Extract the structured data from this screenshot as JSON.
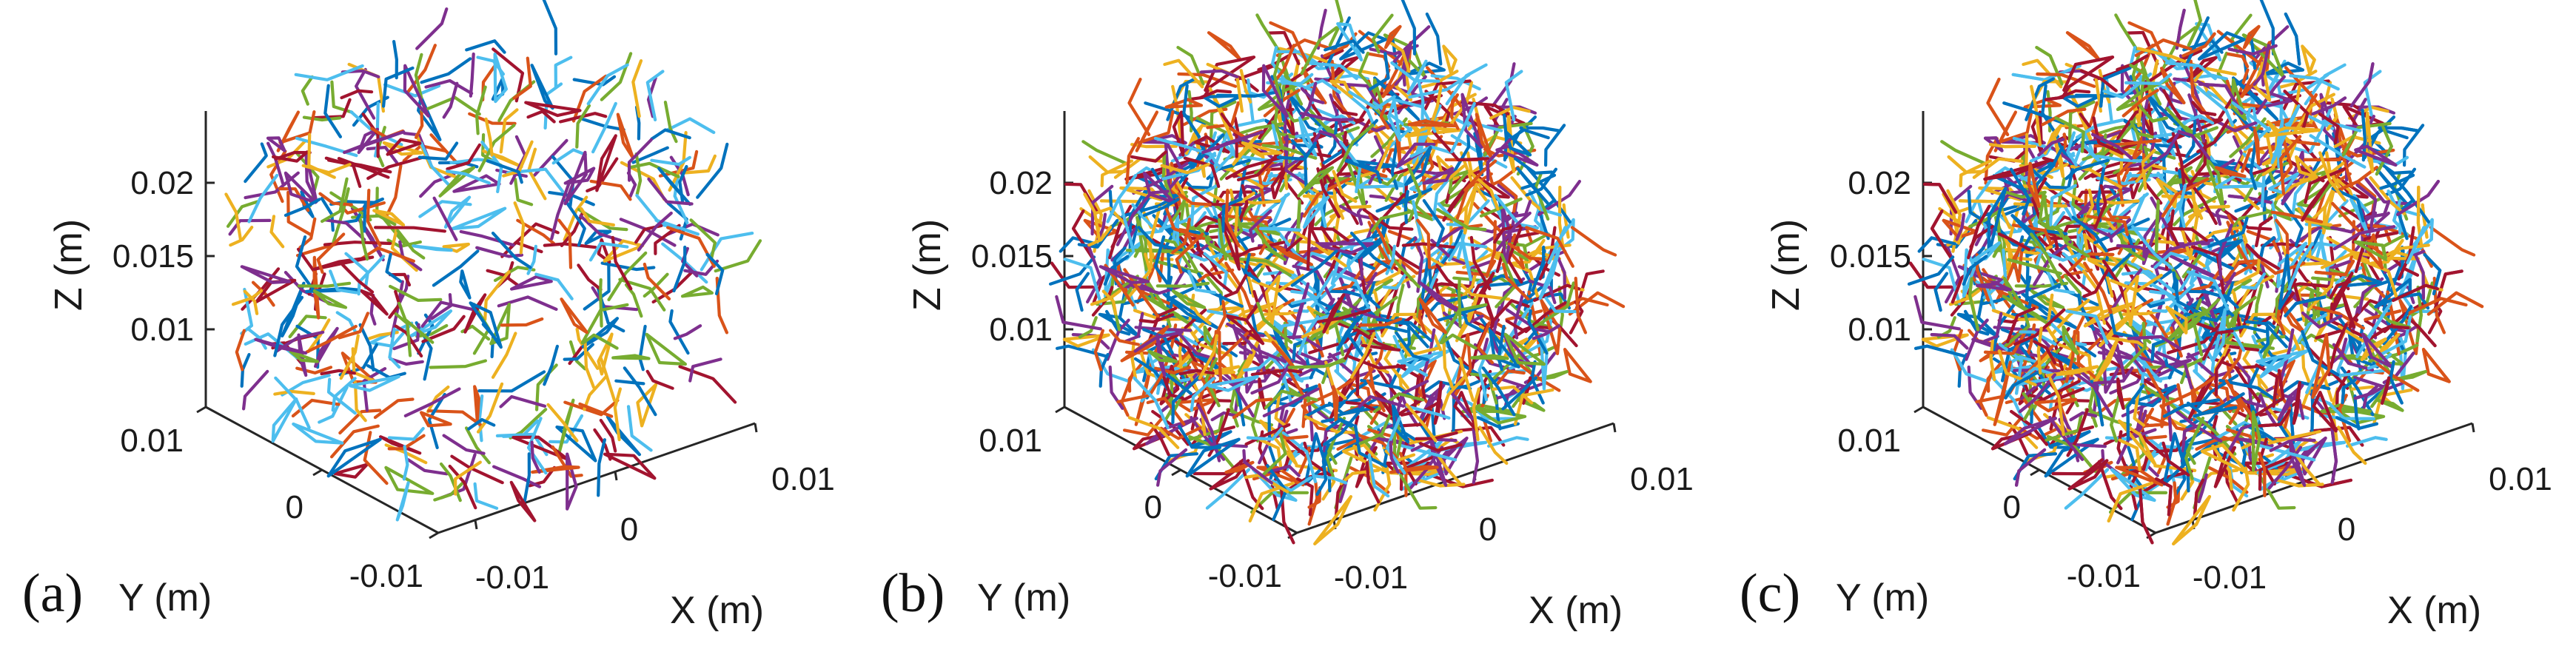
{
  "chart_data": [
    {
      "type": "scatter",
      "panel_label": "(a)",
      "density": "low",
      "xlabel": "X (m)",
      "ylabel": "Y (m)",
      "zlabel": "Z (m)",
      "x_ticks": [
        "-0.01",
        "0",
        "0.01"
      ],
      "y_ticks": [
        "-0.01",
        "0",
        "0.01"
      ],
      "z_ticks": [
        "0.01",
        "0.015",
        "0.02"
      ],
      "xlim": [
        -0.0125,
        0.0125
      ],
      "ylim": [
        -0.0125,
        0.0125
      ],
      "zlim": [
        0.005,
        0.025
      ],
      "grid": false,
      "legend": "none"
    },
    {
      "type": "scatter",
      "panel_label": "(b)",
      "density": "medium",
      "xlabel": "X (m)",
      "ylabel": "Y (m)",
      "zlabel": "Z (m)",
      "x_ticks": [
        "-0.01",
        "0",
        "0.01"
      ],
      "y_ticks": [
        "-0.01",
        "0",
        "0.01"
      ],
      "z_ticks": [
        "0.01",
        "0.015",
        "0.02"
      ],
      "xlim": [
        -0.0125,
        0.0125
      ],
      "ylim": [
        -0.0125,
        0.0125
      ],
      "zlim": [
        0.005,
        0.025
      ],
      "grid": false,
      "legend": "none"
    },
    {
      "type": "scatter",
      "panel_label": "(c)",
      "density": "high",
      "xlabel": "X (m)",
      "ylabel": "Y (m)",
      "zlabel": "Z (m)",
      "x_ticks": [
        "-0.01",
        "0",
        "0.01"
      ],
      "y_ticks": [
        "-0.01",
        "0",
        "0.01"
      ],
      "z_ticks": [
        "0.01",
        "0.015",
        "0.02"
      ],
      "xlim": [
        -0.0125,
        0.0125
      ],
      "ylim": [
        -0.0125,
        0.0125
      ],
      "zlim": [
        0.005,
        0.025
      ],
      "grid": false,
      "legend": "none"
    }
  ],
  "colors": [
    "#0072BD",
    "#D95319",
    "#EDB120",
    "#7E2F8E",
    "#77AC30",
    "#4DBEEE",
    "#A2142F"
  ]
}
